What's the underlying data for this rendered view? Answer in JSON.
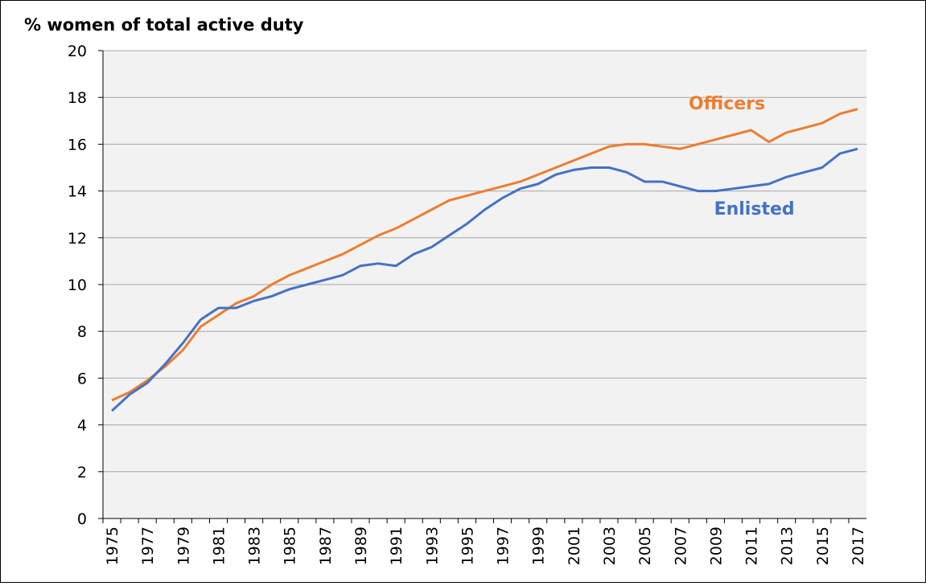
{
  "chart_data": {
    "type": "line",
    "title": "% women of total active duty",
    "categories": [
      "1975",
      null,
      "1977",
      null,
      "1979",
      null,
      "1981",
      null,
      "1983",
      null,
      "1985",
      null,
      "1987",
      null,
      "1989",
      null,
      "1991",
      null,
      "1993",
      null,
      "1995",
      null,
      "1997",
      null,
      "1999",
      null,
      "2001",
      null,
      "2003",
      null,
      "2005",
      null,
      "2007",
      null,
      "2009",
      null,
      "2011",
      null,
      "2013",
      null,
      "2015",
      null,
      "2017"
    ],
    "series": [
      {
        "name": "Officers",
        "color": "#ed7d31",
        "values": [
          5.05,
          5.4,
          5.9,
          6.5,
          7.2,
          8.2,
          8.7,
          9.2,
          9.5,
          10.0,
          10.4,
          10.7,
          11.0,
          11.3,
          11.7,
          12.1,
          12.4,
          12.8,
          13.2,
          13.6,
          13.8,
          14.0,
          14.2,
          14.4,
          14.7,
          15.0,
          15.3,
          15.6,
          15.9,
          16.0,
          16.0,
          15.9,
          15.8,
          16.0,
          16.2,
          16.4,
          16.6,
          16.1,
          16.5,
          16.7,
          16.9,
          17.3,
          17.5
        ]
      },
      {
        "name": "Enlisted",
        "color": "#4472c4",
        "values": [
          4.6,
          5.3,
          5.8,
          6.6,
          7.5,
          8.5,
          9.0,
          9.0,
          9.3,
          9.5,
          9.8,
          10.0,
          10.2,
          10.4,
          10.8,
          10.9,
          10.8,
          11.3,
          11.6,
          12.1,
          12.6,
          13.2,
          13.7,
          14.1,
          14.3,
          14.7,
          14.9,
          15.0,
          15.0,
          14.8,
          14.4,
          14.4,
          14.2,
          14.0,
          14.0,
          14.1,
          14.2,
          14.3,
          14.6,
          14.8,
          15.0,
          15.6,
          15.8
        ]
      }
    ],
    "ylim": [
      0,
      20
    ],
    "yticks": [
      0,
      2,
      4,
      6,
      8,
      10,
      12,
      14,
      16,
      18,
      20
    ],
    "grid": true
  }
}
